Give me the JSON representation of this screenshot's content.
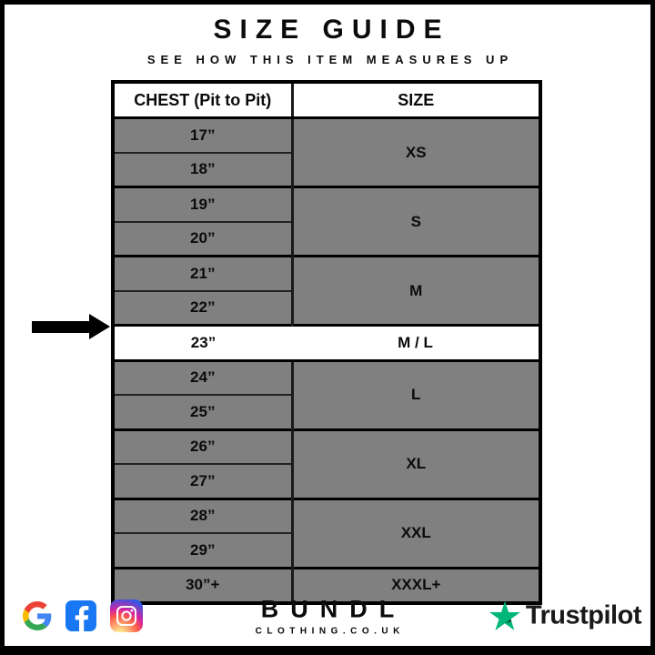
{
  "header": {
    "title": "SIZE GUIDE",
    "subtitle": "SEE HOW THIS ITEM MEASURES UP"
  },
  "chart_data": {
    "type": "table",
    "title": "SIZE GUIDE",
    "columns": [
      "CHEST (Pit to Pit)",
      "SIZE"
    ],
    "groups": [
      {
        "size": "XS",
        "chest": [
          "17”",
          "18”"
        ],
        "highlighted": false
      },
      {
        "size": "S",
        "chest": [
          "19”",
          "20”"
        ],
        "highlighted": false
      },
      {
        "size": "M",
        "chest": [
          "21”",
          "22”"
        ],
        "highlighted": false
      },
      {
        "size": "M / L",
        "chest": [
          "23”"
        ],
        "highlighted": true
      },
      {
        "size": "L",
        "chest": [
          "24”",
          "25”"
        ],
        "highlighted": false
      },
      {
        "size": "XL",
        "chest": [
          "26”",
          "27”"
        ],
        "highlighted": false
      },
      {
        "size": "XXL",
        "chest": [
          "28”",
          "29”"
        ],
        "highlighted": false
      },
      {
        "size": "XXXL+",
        "chest": [
          "30”+"
        ],
        "highlighted": false
      }
    ],
    "highlighted_row": {
      "chest": "23”",
      "size": "M / L"
    },
    "layout": {
      "row_background": "#808080",
      "highlight_background": "#FFFFFF",
      "border_color": "#000000"
    }
  },
  "footer": {
    "brand": {
      "name": "BUNDL",
      "domain": "CLOTHING.CO.UK"
    },
    "social_icons": [
      "google",
      "facebook",
      "instagram"
    ],
    "trustpilot": {
      "label": "Trustpilot",
      "star_color": "#00B67A",
      "star_shadow_color": "#005128"
    }
  },
  "colors": {
    "frame": "#000000",
    "row_gray": "#808080",
    "highlight_white": "#FFFFFF",
    "facebook_blue": "#1877F2",
    "trustpilot_green": "#00B67A",
    "text": "#0B0B0B"
  }
}
